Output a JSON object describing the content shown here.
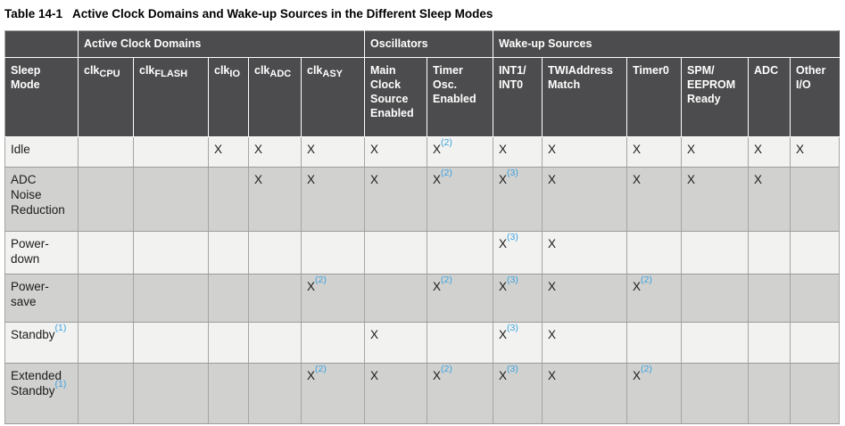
{
  "page": {
    "title_label": "Table 14-1",
    "title_text": "Active Clock Domains and Wake-up Sources in the Different Sleep Modes"
  },
  "colors": {
    "header_bg": "#4c4c4e",
    "row_light": "#f2f2f0",
    "row_dark": "#d1d1cf",
    "footnote_blue": "#3aa3e3",
    "grid_line": "#a5a5a3"
  },
  "table": {
    "groups": [
      {
        "label": "",
        "span": 1
      },
      {
        "label": "Active Clock Domains",
        "span": 5
      },
      {
        "label": "Oscillators",
        "span": 2
      },
      {
        "label": "Wake-up Sources",
        "span": 6
      }
    ],
    "columns": [
      {
        "label": "Sleep Mode"
      },
      {
        "prefix": "clk",
        "sub": "CPU"
      },
      {
        "prefix": "clk",
        "sub": "FLASH"
      },
      {
        "prefix": "clk",
        "sub": "IO"
      },
      {
        "prefix": "clk",
        "sub": "ADC"
      },
      {
        "prefix": "clk",
        "sub": "ASY"
      },
      {
        "label": "Main Clock Source Enabled"
      },
      {
        "label": "Timer Osc. Enabled"
      },
      {
        "label": "INT1/INT0"
      },
      {
        "label": "TWIAddress Match"
      },
      {
        "label": "Timer0"
      },
      {
        "label": "SPM/EEPROM Ready"
      },
      {
        "label": "ADC"
      },
      {
        "label": "Other I/O"
      }
    ],
    "rows": [
      {
        "mode": "Idle",
        "note": "",
        "cells": [
          "",
          "",
          "X",
          "X",
          "X",
          "X",
          "X(2)",
          "X",
          "X",
          "X",
          "X",
          "X",
          "X"
        ]
      },
      {
        "mode": "ADC Noise Reduction",
        "note": "",
        "cells": [
          "",
          "",
          "",
          "X",
          "X",
          "X",
          "X(2)",
          "X(3)",
          "X",
          "X",
          "X",
          "X",
          ""
        ]
      },
      {
        "mode": "Power-down",
        "note": "",
        "cells": [
          "",
          "",
          "",
          "",
          "",
          "",
          "",
          "X(3)",
          "X",
          "",
          "",
          "",
          ""
        ]
      },
      {
        "mode": "Power-save",
        "note": "",
        "cells": [
          "",
          "",
          "",
          "",
          "X(2)",
          "",
          "X(2)",
          "X(3)",
          "X",
          "X(2)",
          "",
          "",
          ""
        ]
      },
      {
        "mode": "Standby",
        "note": "(1)",
        "cells": [
          "",
          "",
          "",
          "",
          "",
          "X",
          "",
          "X(3)",
          "X",
          "",
          "",
          "",
          ""
        ]
      },
      {
        "mode": "Extended Standby",
        "note": "(1)",
        "cells": [
          "",
          "",
          "",
          "",
          "X(2)",
          "X",
          "X(2)",
          "X(3)",
          "X",
          "X(2)",
          "",
          "",
          ""
        ]
      }
    ]
  }
}
